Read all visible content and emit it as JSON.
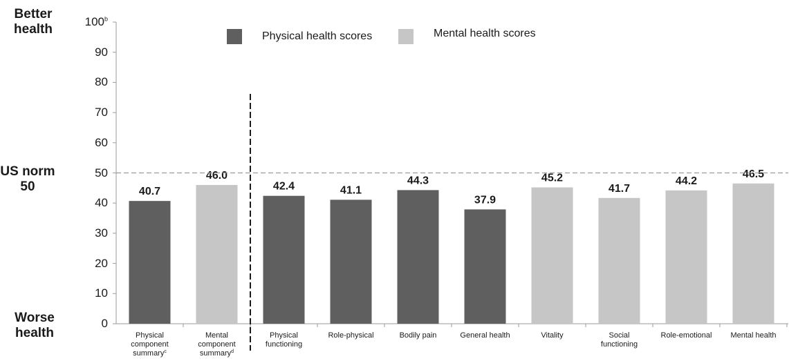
{
  "side_labels": {
    "top_line1": "Better",
    "top_line2": "health",
    "norm_line1": "US norm",
    "norm_line2": "50",
    "bottom_line1": "Worse",
    "bottom_line2": "health"
  },
  "legend": {
    "physical": "Physical health scores",
    "mental": "Mental health scores"
  },
  "colors": {
    "physical": "#5f5f5f",
    "mental": "#c6c6c6",
    "norm_line": "#9a9a9a",
    "divider": "#1a1a1a"
  },
  "chart_data": {
    "type": "bar",
    "ylim": [
      0,
      100
    ],
    "yticks": [
      {
        "value": 0,
        "label": "0"
      },
      {
        "value": 10,
        "label": "10"
      },
      {
        "value": 20,
        "label": "20"
      },
      {
        "value": 30,
        "label": "30"
      },
      {
        "value": 40,
        "label": "40"
      },
      {
        "value": 50,
        "label": "50"
      },
      {
        "value": 60,
        "label": "60"
      },
      {
        "value": 70,
        "label": "70"
      },
      {
        "value": 80,
        "label": "80"
      },
      {
        "value": 90,
        "label": "90"
      },
      {
        "value": 100,
        "label": "100",
        "sup": "b"
      }
    ],
    "reference_line": 50,
    "divider_after_index": 1,
    "bars": [
      {
        "lines": [
          "Physical",
          "component",
          "summary"
        ],
        "sup": "c",
        "value": 40.7,
        "value_label": "40.7",
        "group": "physical"
      },
      {
        "lines": [
          "Mental",
          "component",
          "summary"
        ],
        "sup": "d",
        "value": 46.0,
        "value_label": "46.0",
        "group": "mental"
      },
      {
        "lines": [
          "Physical",
          "functioning"
        ],
        "value": 42.4,
        "value_label": "42.4",
        "group": "physical"
      },
      {
        "lines": [
          "Role-physical"
        ],
        "value": 41.1,
        "value_label": "41.1",
        "group": "physical"
      },
      {
        "lines": [
          "Bodily pain"
        ],
        "value": 44.3,
        "value_label": "44.3",
        "group": "physical"
      },
      {
        "lines": [
          "General health"
        ],
        "value": 37.9,
        "value_label": "37.9",
        "group": "physical"
      },
      {
        "lines": [
          "Vitality"
        ],
        "value": 45.2,
        "value_label": "45.2",
        "group": "mental"
      },
      {
        "lines": [
          "Social",
          "functioning"
        ],
        "value": 41.7,
        "value_label": "41.7",
        "group": "mental"
      },
      {
        "lines": [
          "Role-emotional"
        ],
        "value": 44.2,
        "value_label": "44.2",
        "group": "mental"
      },
      {
        "lines": [
          "Mental health"
        ],
        "value": 46.5,
        "value_label": "46.5",
        "group": "mental"
      }
    ],
    "grid": false,
    "legend_position": "top"
  }
}
